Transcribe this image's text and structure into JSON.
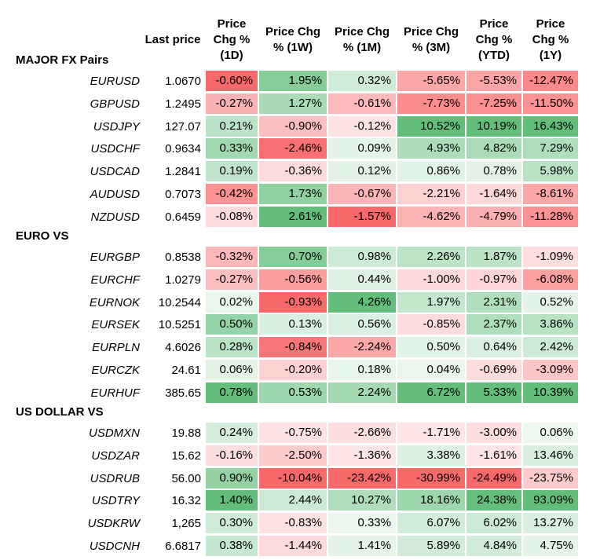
{
  "headers": {
    "last_price": "Last price",
    "columns": [
      "Price\nChg %\n(1D)",
      "Price Chg\n% (1W)",
      "Price Chg\n% (1M)",
      "Price Chg\n% (3M)",
      "Price\nChg %\n(YTD)",
      "Price\nChg %\n(1Y)"
    ]
  },
  "colors": {
    "positive": "#63be7b",
    "negative": "#f8696b",
    "neutral": "#ffffff"
  },
  "sections": [
    {
      "title": "MAJOR FX Pairs",
      "rows": [
        {
          "pair": "EURUSD",
          "last": "1.0670",
          "values": [
            "-0.60%",
            "1.95%",
            "0.32%",
            "-5.65%",
            "-5.53%",
            "-12.47%"
          ]
        },
        {
          "pair": "GBPUSD",
          "last": "1.2495",
          "values": [
            "-0.27%",
            "1.27%",
            "-0.61%",
            "-7.73%",
            "-7.25%",
            "-11.50%"
          ]
        },
        {
          "pair": "USDJPY",
          "last": "127.07",
          "values": [
            "0.21%",
            "-0.90%",
            "-0.12%",
            "10.52%",
            "10.19%",
            "16.43%"
          ]
        },
        {
          "pair": "USDCHF",
          "last": "0.9634",
          "values": [
            "0.33%",
            "-2.46%",
            "0.09%",
            "4.93%",
            "4.82%",
            "7.29%"
          ]
        },
        {
          "pair": "USDCAD",
          "last": "1.2841",
          "values": [
            "0.19%",
            "-0.36%",
            "0.12%",
            "0.86%",
            "0.78%",
            "5.98%"
          ]
        },
        {
          "pair": "AUDUSD",
          "last": "0.7073",
          "values": [
            "-0.42%",
            "1.73%",
            "-0.67%",
            "-2.21%",
            "-1.64%",
            "-8.61%"
          ]
        },
        {
          "pair": "NZDUSD",
          "last": "0.6459",
          "values": [
            "-0.08%",
            "2.61%",
            "-1.57%",
            "-4.62%",
            "-4.79%",
            "-11.28%"
          ]
        }
      ]
    },
    {
      "title": "EURO VS",
      "rows": [
        {
          "pair": "EURGBP",
          "last": "0.8538",
          "values": [
            "-0.32%",
            "0.70%",
            "0.98%",
            "2.26%",
            "1.87%",
            "-1.09%"
          ]
        },
        {
          "pair": "EURCHF",
          "last": "1.0279",
          "values": [
            "-0.27%",
            "-0.56%",
            "0.44%",
            "-1.00%",
            "-0.97%",
            "-6.08%"
          ]
        },
        {
          "pair": "EURNOK",
          "last": "10.2544",
          "values": [
            "0.02%",
            "-0.93%",
            "4.26%",
            "1.97%",
            "2.31%",
            "0.52%"
          ]
        },
        {
          "pair": "EURSEK",
          "last": "10.5251",
          "values": [
            "0.50%",
            "0.13%",
            "0.56%",
            "-0.85%",
            "2.37%",
            "3.86%"
          ]
        },
        {
          "pair": "EURPLN",
          "last": "4.6026",
          "values": [
            "0.28%",
            "-0.84%",
            "-2.24%",
            "0.50%",
            "0.64%",
            "2.42%"
          ]
        },
        {
          "pair": "EURCZK",
          "last": "24.61",
          "values": [
            "0.06%",
            "-0.20%",
            "0.18%",
            "0.04%",
            "-0.69%",
            "-3.09%"
          ]
        },
        {
          "pair": "EURHUF",
          "last": "385.65",
          "values": [
            "0.78%",
            "0.53%",
            "2.24%",
            "6.72%",
            "5.33%",
            "10.39%"
          ]
        }
      ]
    },
    {
      "title": "US DOLLAR VS",
      "rows": [
        {
          "pair": "USDMXN",
          "last": "19.88",
          "values": [
            "0.24%",
            "-0.75%",
            "-2.66%",
            "-1.71%",
            "-3.00%",
            "0.06%"
          ]
        },
        {
          "pair": "USDZAR",
          "last": "15.62",
          "values": [
            "-0.16%",
            "-2.50%",
            "-1.36%",
            "3.38%",
            "-1.61%",
            "13.46%"
          ]
        },
        {
          "pair": "USDRUB",
          "last": "56.00",
          "values": [
            "0.90%",
            "-10.04%",
            "-23.42%",
            "-30.99%",
            "-24.49%",
            "-23.75%"
          ]
        },
        {
          "pair": "USDTRY",
          "last": "16.32",
          "values": [
            "1.40%",
            "2.44%",
            "10.27%",
            "18.16%",
            "24.38%",
            "93.09%"
          ]
        },
        {
          "pair": "USDKRW",
          "last": "1,265",
          "values": [
            "0.30%",
            "-0.83%",
            "0.33%",
            "6.07%",
            "6.02%",
            "13.27%"
          ]
        },
        {
          "pair": "USDCNH",
          "last": "6.6817",
          "values": [
            "0.38%",
            "-1.44%",
            "1.41%",
            "5.89%",
            "4.84%",
            "4.75%"
          ]
        }
      ]
    }
  ]
}
